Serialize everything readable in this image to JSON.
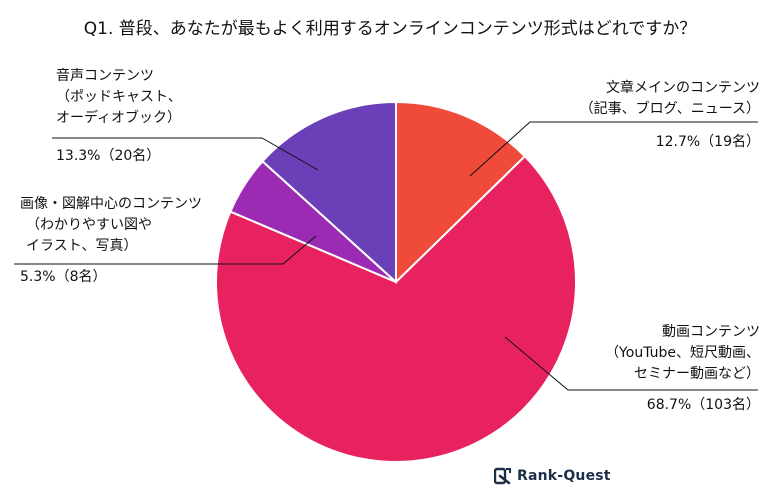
{
  "chart_data": {
    "type": "pie",
    "title": "Q1. 普段、あなたが最もよく利用するオンラインコンテンツ形式はどれですか？",
    "slices": [
      {
        "label_lines": [
          "文章メインのコンテンツ",
          "（記事、ブログ、ニュース）"
        ],
        "value_text": "12.7%（19名）",
        "percent": 12.7,
        "count": 19,
        "color": "#ef4a3a"
      },
      {
        "label_lines": [
          "動画コンテンツ",
          "（YouTube、短尺動画、",
          "セミナー動画など）"
        ],
        "value_text": "68.7%（103名）",
        "percent": 68.7,
        "count": 103,
        "color": "#e8215f"
      },
      {
        "label_lines": [
          "画像・図解中心のコンテンツ",
          "（わかりやすい図や",
          "イラスト、写真）"
        ],
        "value_text": "5.3%（8名）",
        "percent": 5.3,
        "count": 8,
        "color": "#9b2bb3"
      },
      {
        "label_lines": [
          "音声コンテンツ",
          "（ポッドキャスト、",
          "オーディオブック）"
        ],
        "value_text": "13.3%（20名）",
        "percent": 13.3,
        "count": 20,
        "color": "#6a3fb8"
      }
    ]
  },
  "brand": {
    "name": "Rank-Quest",
    "icon": "rank-quest-logo-icon",
    "color": "#1e2f4a"
  }
}
